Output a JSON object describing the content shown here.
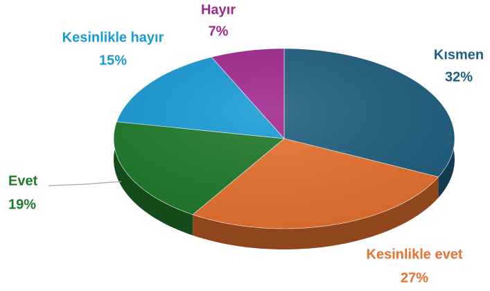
{
  "chart_data": {
    "type": "pie",
    "categories": [
      "Kısmen",
      "Kesinlikle evet",
      "Evet",
      "Kesinlikle hayır",
      "Hayır"
    ],
    "values": [
      32,
      27,
      19,
      15,
      7
    ],
    "value_labels": [
      "32%",
      "27%",
      "19%",
      "15%",
      "7%"
    ],
    "colors": [
      "#1f5f80",
      "#e8712f",
      "#1e7a2a",
      "#189ad6",
      "#a0288e"
    ]
  }
}
